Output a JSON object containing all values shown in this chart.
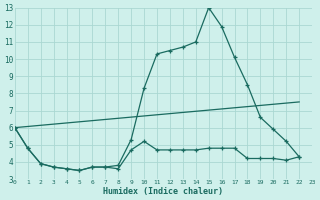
{
  "title": "",
  "xlabel": "Humidex (Indice chaleur)",
  "background_color": "#cff0eb",
  "grid_color": "#aad8d2",
  "line_color": "#1a6b60",
  "series": {
    "line1_x": [
      0,
      1,
      2,
      3,
      4,
      5,
      6,
      7,
      8,
      9,
      10,
      11,
      12,
      13,
      14,
      15,
      16,
      17,
      18,
      19,
      20,
      21,
      22
    ],
    "line1_y": [
      6.0,
      4.8,
      3.9,
      3.7,
      3.6,
      3.5,
      3.7,
      3.7,
      3.8,
      5.3,
      8.3,
      10.3,
      10.5,
      10.7,
      11.0,
      13.0,
      11.9,
      10.1,
      8.5,
      6.6,
      5.9,
      5.2,
      4.3
    ],
    "line2_x": [
      0,
      1,
      2,
      3,
      4,
      5,
      6,
      7,
      8,
      9,
      10,
      11,
      12,
      13,
      14,
      15,
      16,
      17,
      18,
      19,
      20,
      21,
      22
    ],
    "line2_y": [
      6.0,
      4.8,
      3.9,
      3.7,
      3.6,
      3.5,
      3.7,
      3.7,
      3.6,
      4.7,
      5.2,
      4.7,
      4.7,
      4.7,
      4.7,
      4.8,
      4.8,
      4.8,
      4.2,
      4.2,
      4.2,
      4.1,
      4.3
    ],
    "line3_x": [
      0,
      22
    ],
    "line3_y": [
      6.0,
      7.5
    ]
  },
  "xlim": [
    0,
    23
  ],
  "ylim": [
    3,
    13
  ],
  "yticks": [
    3,
    4,
    5,
    6,
    7,
    8,
    9,
    10,
    11,
    12,
    13
  ],
  "xticks": [
    0,
    1,
    2,
    3,
    4,
    5,
    6,
    7,
    8,
    9,
    10,
    11,
    12,
    13,
    14,
    15,
    16,
    17,
    18,
    19,
    20,
    21,
    22,
    23
  ],
  "marker": "+"
}
